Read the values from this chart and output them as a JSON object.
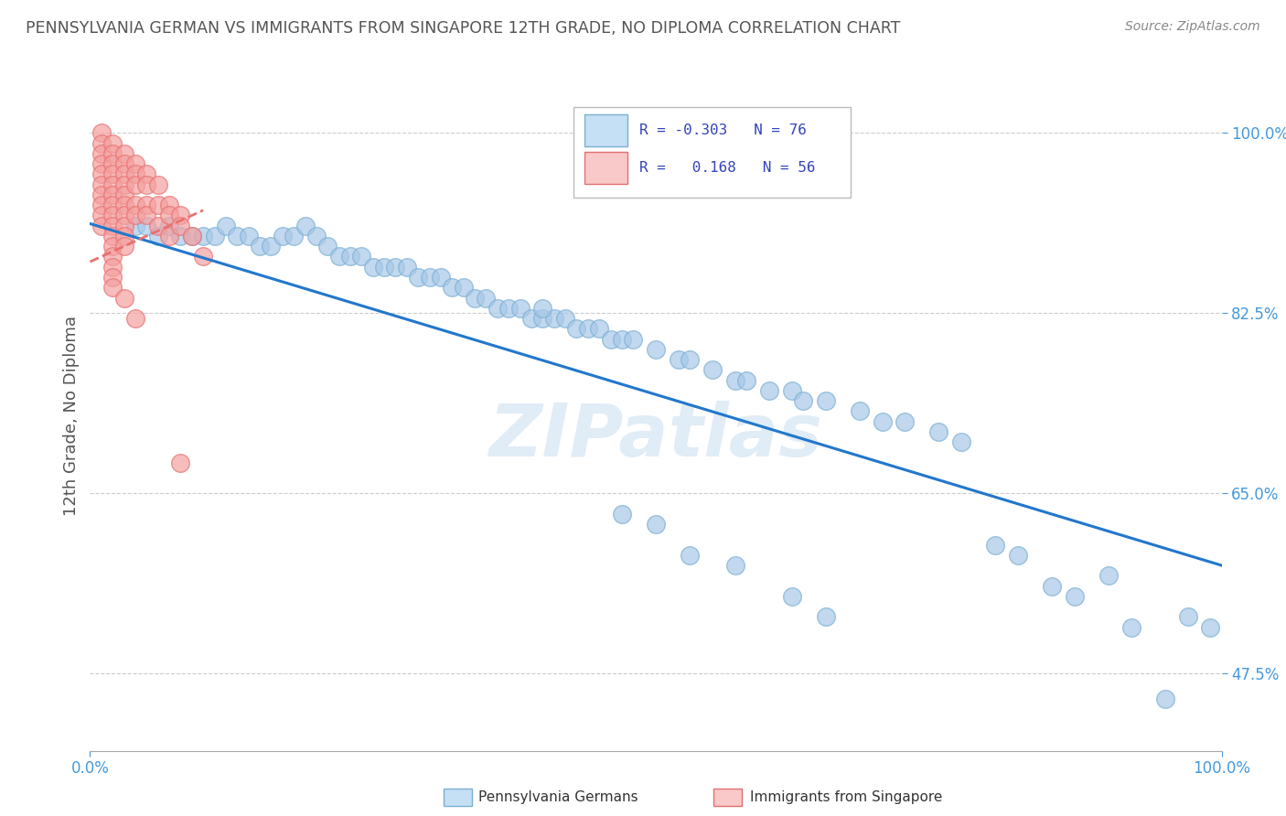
{
  "title": "PENNSYLVANIA GERMAN VS IMMIGRANTS FROM SINGAPORE 12TH GRADE, NO DIPLOMA CORRELATION CHART",
  "source_text": "Source: ZipAtlas.com",
  "ylabel": "12th Grade, No Diploma",
  "legend_blue_label": "Pennsylvania Germans",
  "legend_pink_label": "Immigrants from Singapore",
  "blue_color": "#a8c8e8",
  "blue_edge_color": "#7bafd4",
  "pink_color": "#f4a0a0",
  "pink_edge_color": "#e87070",
  "blue_line_color": "#2277cc",
  "pink_line_color": "#dd5577",
  "watermark": "ZIPatlas",
  "blue_scatter_x": [
    0.04,
    0.05,
    0.06,
    0.07,
    0.08,
    0.09,
    0.1,
    0.11,
    0.12,
    0.13,
    0.14,
    0.15,
    0.16,
    0.17,
    0.18,
    0.19,
    0.2,
    0.21,
    0.22,
    0.23,
    0.24,
    0.25,
    0.26,
    0.27,
    0.28,
    0.29,
    0.3,
    0.31,
    0.32,
    0.33,
    0.34,
    0.35,
    0.36,
    0.37,
    0.38,
    0.39,
    0.4,
    0.41,
    0.42,
    0.43,
    0.44,
    0.45,
    0.46,
    0.47,
    0.48,
    0.5,
    0.52,
    0.53,
    0.55,
    0.57,
    0.58,
    0.6,
    0.62,
    0.63,
    0.65,
    0.68,
    0.7,
    0.72,
    0.75,
    0.77,
    0.8,
    0.82,
    0.85,
    0.87,
    0.9,
    0.92,
    0.95,
    0.97,
    0.99,
    0.47,
    0.5,
    0.53,
    0.57,
    0.62,
    0.65,
    0.4
  ],
  "blue_scatter_y": [
    0.91,
    0.91,
    0.9,
    0.91,
    0.9,
    0.9,
    0.9,
    0.9,
    0.91,
    0.9,
    0.9,
    0.89,
    0.89,
    0.9,
    0.9,
    0.91,
    0.9,
    0.89,
    0.88,
    0.88,
    0.88,
    0.87,
    0.87,
    0.87,
    0.87,
    0.86,
    0.86,
    0.86,
    0.85,
    0.85,
    0.84,
    0.84,
    0.83,
    0.83,
    0.83,
    0.82,
    0.82,
    0.82,
    0.82,
    0.81,
    0.81,
    0.81,
    0.8,
    0.8,
    0.8,
    0.79,
    0.78,
    0.78,
    0.77,
    0.76,
    0.76,
    0.75,
    0.75,
    0.74,
    0.74,
    0.73,
    0.72,
    0.72,
    0.71,
    0.7,
    0.6,
    0.59,
    0.56,
    0.55,
    0.57,
    0.52,
    0.45,
    0.53,
    0.52,
    0.63,
    0.62,
    0.59,
    0.58,
    0.55,
    0.53,
    0.83
  ],
  "pink_scatter_x": [
    0.01,
    0.01,
    0.01,
    0.01,
    0.01,
    0.01,
    0.01,
    0.01,
    0.01,
    0.01,
    0.02,
    0.02,
    0.02,
    0.02,
    0.02,
    0.02,
    0.02,
    0.02,
    0.02,
    0.02,
    0.02,
    0.02,
    0.02,
    0.02,
    0.02,
    0.03,
    0.03,
    0.03,
    0.03,
    0.03,
    0.03,
    0.03,
    0.03,
    0.03,
    0.03,
    0.04,
    0.04,
    0.04,
    0.04,
    0.04,
    0.05,
    0.05,
    0.05,
    0.05,
    0.06,
    0.06,
    0.06,
    0.07,
    0.07,
    0.07,
    0.08,
    0.08,
    0.09,
    0.1,
    0.03,
    0.04,
    0.08
  ],
  "pink_scatter_y": [
    1.0,
    0.99,
    0.98,
    0.97,
    0.96,
    0.95,
    0.94,
    0.93,
    0.92,
    0.91,
    0.99,
    0.98,
    0.97,
    0.96,
    0.95,
    0.94,
    0.93,
    0.92,
    0.91,
    0.9,
    0.89,
    0.88,
    0.87,
    0.86,
    0.85,
    0.98,
    0.97,
    0.96,
    0.95,
    0.94,
    0.93,
    0.92,
    0.91,
    0.9,
    0.89,
    0.97,
    0.96,
    0.95,
    0.93,
    0.92,
    0.96,
    0.95,
    0.93,
    0.92,
    0.95,
    0.93,
    0.91,
    0.93,
    0.92,
    0.9,
    0.92,
    0.91,
    0.9,
    0.88,
    0.84,
    0.82,
    0.68
  ],
  "blue_line_x": [
    0.0,
    1.0
  ],
  "blue_line_y": [
    0.912,
    0.58
  ],
  "pink_line_x": [
    0.0,
    0.1
  ],
  "pink_line_y": [
    0.875,
    0.925
  ],
  "xlim": [
    0.0,
    1.0
  ],
  "ylim": [
    0.4,
    1.05
  ],
  "ytick_vals": [
    1.0,
    0.825,
    0.65,
    0.475
  ],
  "ytick_labels": [
    "100.0%",
    "82.5%",
    "65.0%",
    "47.5%"
  ],
  "xtick_vals": [
    0.0,
    1.0
  ],
  "xtick_labels": [
    "0.0%",
    "100.0%"
  ],
  "grid_color": "#cccccc",
  "bg_color": "#ffffff",
  "title_color": "#555555",
  "axis_label_color": "#555555",
  "tick_color": "#4499dd"
}
